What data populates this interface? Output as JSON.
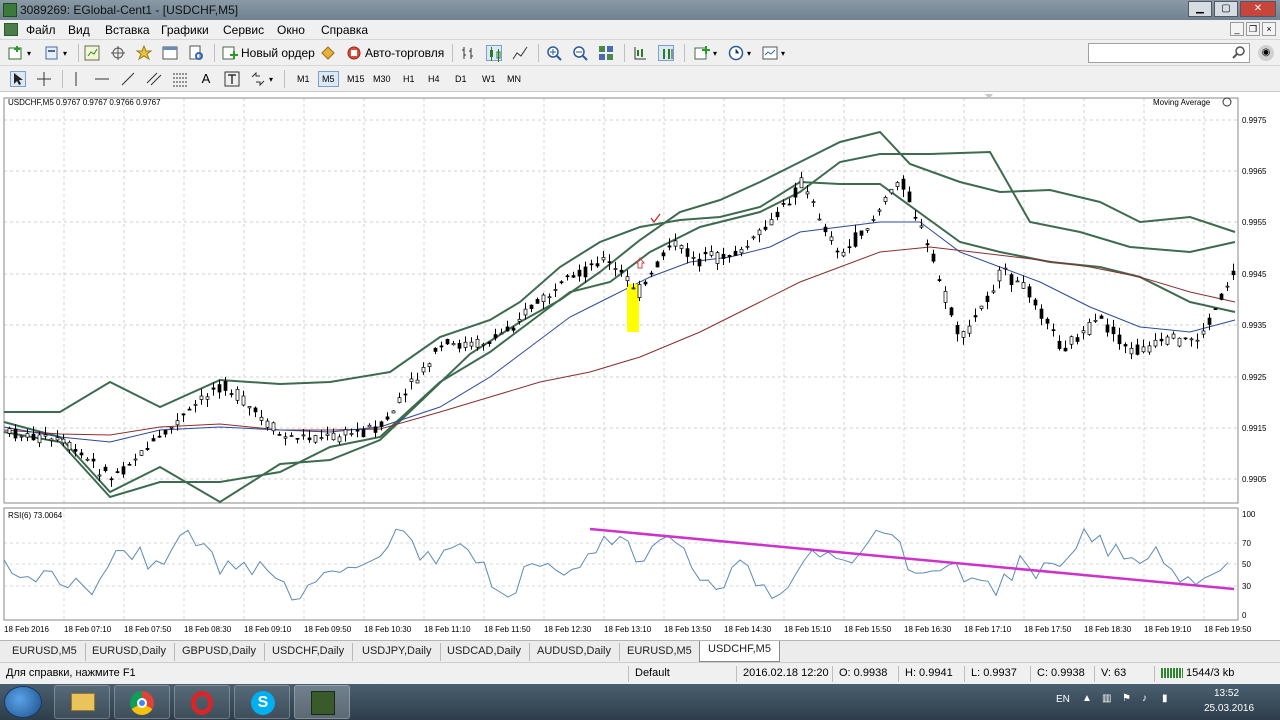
{
  "window": {
    "title": "3089269: EGlobal-Cent1 - [USDCHF,M5]"
  },
  "menu": [
    "Файл",
    "Вид",
    "Вставка",
    "Графики",
    "Сервис",
    "Окно",
    "Справка"
  ],
  "toolbar": {
    "new_order": "Новый ордер",
    "auto_trading": "Авто-торговля",
    "search_placeholder": ""
  },
  "timeframes": [
    "M1",
    "M5",
    "M15",
    "M30",
    "H1",
    "H4",
    "D1",
    "W1",
    "MN"
  ],
  "active_timeframe": "M5",
  "chart": {
    "symbol_info": "USDCHF,M5  0.9767 0.9767 0.9766 0.9767",
    "indicator_label": "Moving Average",
    "price_ticks": [
      "0.9975",
      "0.9965",
      "0.9955",
      "0.9945",
      "0.9935",
      "0.9925",
      "0.9915",
      "0.9905"
    ],
    "rsi_label": "RSI(6) 73.0064",
    "rsi_ticks": [
      "100",
      "70",
      "50",
      "30",
      "0"
    ],
    "time_ticks": [
      "18 Feb 2016",
      "18 Feb 07:10",
      "18 Feb 07:50",
      "18 Feb 08:30",
      "18 Feb 09:10",
      "18 Feb 09:50",
      "18 Feb 10:30",
      "18 Feb 11:10",
      "18 Feb 11:50",
      "18 Feb 12:30",
      "18 Feb 13:10",
      "18 Feb 13:50",
      "18 Feb 14:30",
      "18 Feb 15:10",
      "18 Feb 15:50",
      "18 Feb 16:30",
      "18 Feb 17:10",
      "18 Feb 17:50",
      "18 Feb 18:30",
      "18 Feb 19:10",
      "18 Feb 19:50"
    ],
    "colors": {
      "bollinger": "#3d6b4f",
      "ma_fast": "#2b4a9a",
      "ma_slow": "#8b2e2e",
      "rsi": "#5b8ab5",
      "trendline": "#cc33cc",
      "highlight": "#ffff00"
    }
  },
  "tabs": [
    "EURUSD,M5",
    "EURUSD,Daily",
    "GBPUSD,Daily",
    "USDCHF,Daily",
    "USDJPY,Daily",
    "USDCAD,Daily",
    "AUDUSD,Daily",
    "EURUSD,M5",
    "USDCHF,M5"
  ],
  "active_tab": 8,
  "status": {
    "help": "Для справки, нажмите F1",
    "profile": "Default",
    "datetime": "2016.02.18 12:20",
    "open": "O: 0.9938",
    "high": "H: 0.9941",
    "low": "L: 0.9937",
    "close": "C: 0.9938",
    "volume": "V: 63",
    "traffic": "1544/3 kb"
  },
  "taskbar": {
    "lang": "EN",
    "time": "13:52",
    "date": "25.03.2016"
  }
}
